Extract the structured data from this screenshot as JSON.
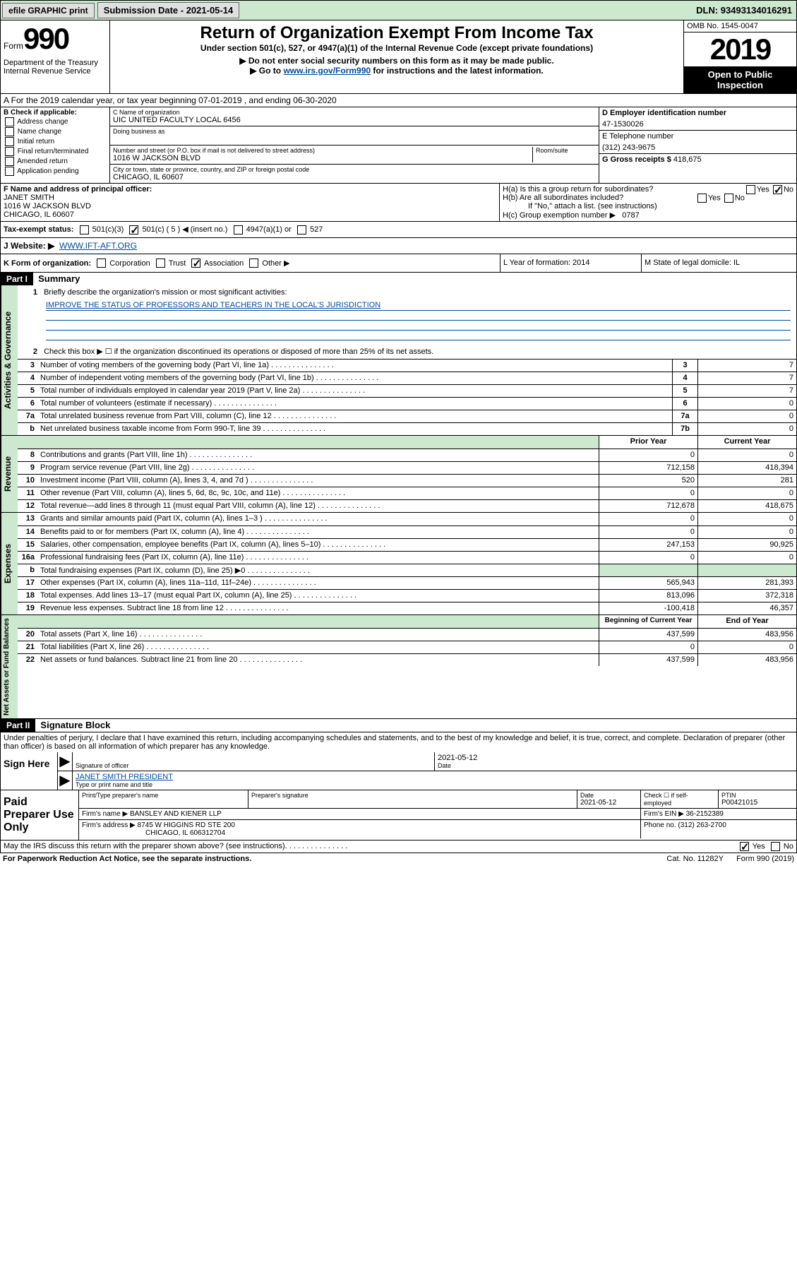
{
  "topbar": {
    "efile": "efile GRAPHIC print",
    "submission": "Submission Date - 2021-05-14",
    "dln": "DLN: 93493134016291"
  },
  "header": {
    "form_label": "Form",
    "form_number": "990",
    "dept": "Department of the Treasury\nInternal Revenue Service",
    "title": "Return of Organization Exempt From Income Tax",
    "subtitle": "Under section 501(c), 527, or 4947(a)(1) of the Internal Revenue Code (except private foundations)",
    "note1": "▶ Do not enter social security numbers on this form as it may be made public.",
    "note2_pre": "▶ Go to ",
    "note2_link": "www.irs.gov/Form990",
    "note2_post": " for instructions and the latest information.",
    "omb": "OMB No. 1545-0047",
    "year": "2019",
    "open": "Open to Public Inspection"
  },
  "rowA": "A For the 2019 calendar year, or tax year beginning 07-01-2019   , and ending 06-30-2020",
  "colB": {
    "label": "B Check if applicable:",
    "items": [
      "Address change",
      "Name change",
      "Initial return",
      "Final return/terminated",
      "Amended return",
      "Application pending"
    ]
  },
  "colC": {
    "name_label": "C Name of organization",
    "name": "UIC UNITED FACULTY LOCAL 6456",
    "dba_label": "Doing business as",
    "addr_label": "Number and street (or P.O. box if mail is not delivered to street address)",
    "addr": "1016 W JACKSON BLVD",
    "room_label": "Room/suite",
    "city_label": "City or town, state or province, country, and ZIP or foreign postal code",
    "city": "CHICAGO, IL  60607"
  },
  "colD": {
    "ein_label": "D Employer identification number",
    "ein": "47-1530026",
    "phone_label": "E Telephone number",
    "phone": "(312) 243-9675",
    "gross_label": "G Gross receipts $",
    "gross": "418,675"
  },
  "rowF": {
    "label": "F  Name and address of principal officer:",
    "name": "JANET SMITH",
    "addr": "1016 W JACKSON BLVD",
    "city": "CHICAGO, IL  60607"
  },
  "rowH": {
    "ha": "H(a)  Is this a group return for subordinates?",
    "hb": "H(b)  Are all subordinates included?",
    "hb_note": "If \"No,\" attach a list. (see instructions)",
    "hc": "H(c)  Group exemption number ▶",
    "hc_val": "0787"
  },
  "taxRow": {
    "label": "Tax-exempt status:",
    "c5": "501(c) ( 5 ) ◀ (insert no.)",
    "opts": [
      "501(c)(3)",
      "4947(a)(1) or",
      "527"
    ]
  },
  "siteRow": {
    "label": "J Website: ▶",
    "url": "WWW.IFT-AFT.ORG"
  },
  "kRow": {
    "k": "K Form of organization:",
    "opts": [
      "Corporation",
      "Trust",
      "Association",
      "Other ▶"
    ],
    "l": "L Year of formation: 2014",
    "m": "M State of legal domicile: IL"
  },
  "part1": {
    "hdr": "Part I",
    "title": "Summary",
    "line1": "Briefly describe the organization's mission or most significant activities:",
    "mission": "IMPROVE THE STATUS OF PROFESSORS AND TEACHERS IN THE LOCAL'S JURISDICTION",
    "line2": "Check this box ▶ ☐  if the organization discontinued its operations or disposed of more than 25% of its net assets.",
    "sides": [
      "Activities & Governance",
      "Revenue",
      "Expenses",
      "Net Assets or Fund Balances"
    ],
    "gov_lines": [
      {
        "n": "3",
        "d": "Number of voting members of the governing body (Part VI, line 1a)",
        "b": "3",
        "v": "7"
      },
      {
        "n": "4",
        "d": "Number of independent voting members of the governing body (Part VI, line 1b)",
        "b": "4",
        "v": "7"
      },
      {
        "n": "5",
        "d": "Total number of individuals employed in calendar year 2019 (Part V, line 2a)",
        "b": "5",
        "v": "7"
      },
      {
        "n": "6",
        "d": "Total number of volunteers (estimate if necessary)",
        "b": "6",
        "v": "0"
      },
      {
        "n": "7a",
        "d": "Total unrelated business revenue from Part VIII, column (C), line 12",
        "b": "7a",
        "v": "0"
      },
      {
        "n": "b",
        "d": "Net unrelated business taxable income from Form 990-T, line 39",
        "b": "7b",
        "v": "0"
      }
    ],
    "col_hdrs": {
      "prior": "Prior Year",
      "current": "Current Year"
    },
    "rev_lines": [
      {
        "n": "8",
        "d": "Contributions and grants (Part VIII, line 1h)",
        "p": "0",
        "c": "0"
      },
      {
        "n": "9",
        "d": "Program service revenue (Part VIII, line 2g)",
        "p": "712,158",
        "c": "418,394"
      },
      {
        "n": "10",
        "d": "Investment income (Part VIII, column (A), lines 3, 4, and 7d )",
        "p": "520",
        "c": "281"
      },
      {
        "n": "11",
        "d": "Other revenue (Part VIII, column (A), lines 5, 6d, 8c, 9c, 10c, and 11e)",
        "p": "0",
        "c": "0"
      },
      {
        "n": "12",
        "d": "Total revenue—add lines 8 through 11 (must equal Part VIII, column (A), line 12)",
        "p": "712,678",
        "c": "418,675"
      }
    ],
    "exp_lines": [
      {
        "n": "13",
        "d": "Grants and similar amounts paid (Part IX, column (A), lines 1–3 )",
        "p": "0",
        "c": "0"
      },
      {
        "n": "14",
        "d": "Benefits paid to or for members (Part IX, column (A), line 4)",
        "p": "0",
        "c": "0"
      },
      {
        "n": "15",
        "d": "Salaries, other compensation, employee benefits (Part IX, column (A), lines 5–10)",
        "p": "247,153",
        "c": "90,925"
      },
      {
        "n": "16a",
        "d": "Professional fundraising fees (Part IX, column (A), line 11e)",
        "p": "0",
        "c": "0"
      },
      {
        "n": "b",
        "d": "Total fundraising expenses (Part IX, column (D), line 25) ▶0",
        "p": "shade",
        "c": "shade"
      },
      {
        "n": "17",
        "d": "Other expenses (Part IX, column (A), lines 11a–11d, 11f–24e)",
        "p": "565,943",
        "c": "281,393"
      },
      {
        "n": "18",
        "d": "Total expenses. Add lines 13–17 (must equal Part IX, column (A), line 25)",
        "p": "813,096",
        "c": "372,318"
      },
      {
        "n": "19",
        "d": "Revenue less expenses. Subtract line 18 from line 12",
        "p": "-100,418",
        "c": "46,357"
      }
    ],
    "na_hdrs": {
      "beg": "Beginning of Current Year",
      "end": "End of Year"
    },
    "na_lines": [
      {
        "n": "20",
        "d": "Total assets (Part X, line 16)",
        "p": "437,599",
        "c": "483,956"
      },
      {
        "n": "21",
        "d": "Total liabilities (Part X, line 26)",
        "p": "0",
        "c": "0"
      },
      {
        "n": "22",
        "d": "Net assets or fund balances. Subtract line 21 from line 20",
        "p": "437,599",
        "c": "483,956"
      }
    ]
  },
  "part2": {
    "hdr": "Part II",
    "title": "Signature Block",
    "perjury": "Under penalties of perjury, I declare that I have examined this return, including accompanying schedules and statements, and to the best of my knowledge and belief, it is true, correct, and complete. Declaration of preparer (other than officer) is based on all information of which preparer has any knowledge.",
    "sign": "Sign Here",
    "sig_label": "Signature of officer",
    "date": "2021-05-12",
    "date_label": "Date",
    "name": "JANET SMITH  PRESIDENT",
    "name_label": "Type or print name and title",
    "paid": "Paid Preparer Use Only",
    "prep_name_label": "Print/Type preparer's name",
    "prep_sig_label": "Preparer's signature",
    "prep_date_label": "Date",
    "prep_date": "2021-05-12",
    "check_label": "Check ☐ if self-employed",
    "ptin_label": "PTIN",
    "ptin": "P00421015",
    "firm_name_label": "Firm's name    ▶",
    "firm_name": "BANSLEY AND KIENER LLP",
    "firm_ein_label": "Firm's EIN ▶",
    "firm_ein": "36-2152389",
    "firm_addr_label": "Firm's address ▶",
    "firm_addr": "8745 W HIGGINS RD STE 200",
    "firm_city": "CHICAGO, IL  606312704",
    "phone_label": "Phone no.",
    "phone": "(312) 263-2700",
    "discuss": "May the IRS discuss this return with the preparer shown above? (see instructions)"
  },
  "footer": {
    "pra": "For Paperwork Reduction Act Notice, see the separate instructions.",
    "cat": "Cat. No. 11282Y",
    "form": "Form 990 (2019)"
  }
}
